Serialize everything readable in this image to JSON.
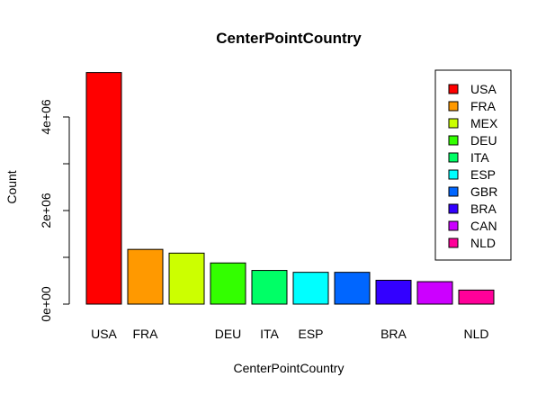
{
  "chart_data": {
    "type": "bar",
    "title": "CenterPointCountry",
    "xlabel": "CenterPointCountry",
    "ylabel": "Count",
    "categories": [
      "USA",
      "FRA",
      "MEX",
      "DEU",
      "ITA",
      "ESP",
      "GBR",
      "BRA",
      "CAN",
      "NLD"
    ],
    "shown_x_tick_labels": [
      "USA",
      "FRA",
      "",
      "DEU",
      "ITA",
      "ESP",
      "",
      "BRA",
      "",
      "NLD"
    ],
    "values": [
      4950000,
      1170000,
      1090000,
      880000,
      720000,
      680000,
      680000,
      510000,
      480000,
      300000
    ],
    "colors": [
      "#FF0000",
      "#FF9900",
      "#CCFF00",
      "#33FF00",
      "#00FF66",
      "#00FFFF",
      "#0066FF",
      "#3300FF",
      "#CC00FF",
      "#FF0099"
    ],
    "ylim": [
      0,
      5000000
    ],
    "yticks": [
      0,
      1000000,
      2000000,
      3000000,
      4000000
    ],
    "ytick_labels": [
      "0e+00",
      "",
      "2e+06",
      "",
      "4e+06"
    ],
    "legend": {
      "placement": "top-right",
      "entries": [
        "USA",
        "FRA",
        "MEX",
        "DEU",
        "ITA",
        "ESP",
        "GBR",
        "BRA",
        "CAN",
        "NLD"
      ]
    },
    "grid": false
  }
}
